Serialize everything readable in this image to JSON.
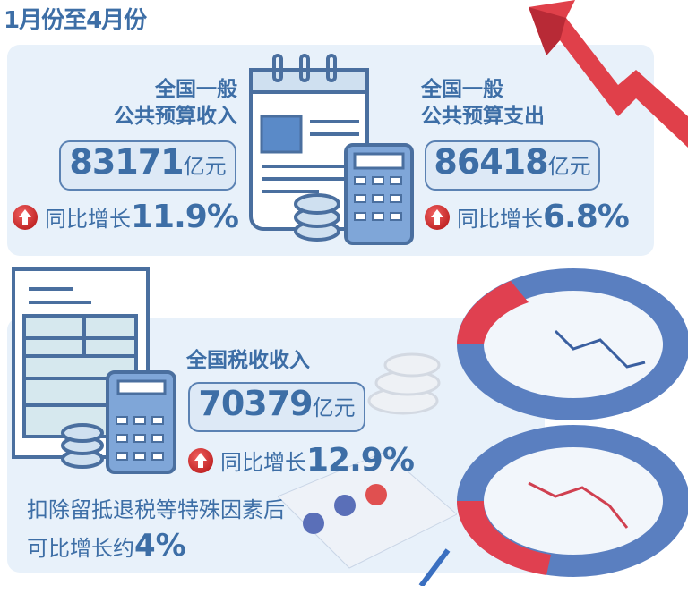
{
  "title": "1月份至4月份",
  "revenue": {
    "heading_line1": "全国一般",
    "heading_line2": "公共预算收入",
    "value": "83171",
    "unit": "亿元",
    "growth_label": "同比增长",
    "growth_value": "11.9%"
  },
  "expenditure": {
    "heading_line1": "全国一般",
    "heading_line2": "公共预算支出",
    "value": "86418",
    "unit": "亿元",
    "growth_label": "同比增长",
    "growth_value": "6.8%"
  },
  "tax": {
    "heading": "全国税收收入",
    "value": "70379",
    "unit": "亿元",
    "growth_label": "同比增长",
    "growth_value": "12.9%",
    "note_line1": "扣除留抵退税等特殊因素后",
    "note_line2_label": "可比增长约",
    "note_line2_value": "4%"
  },
  "colors": {
    "text": "#3d6ea6",
    "panel": "#e8f1fa",
    "arrow": "#e0404a",
    "up_icon": "#c01818"
  },
  "icons": [
    "up-arrow-icon",
    "calendar-document-icon",
    "calculator-icon",
    "coin-stack-icon",
    "spreadsheet-icon",
    "donut-chart-icon",
    "trend-arrow-icon"
  ]
}
